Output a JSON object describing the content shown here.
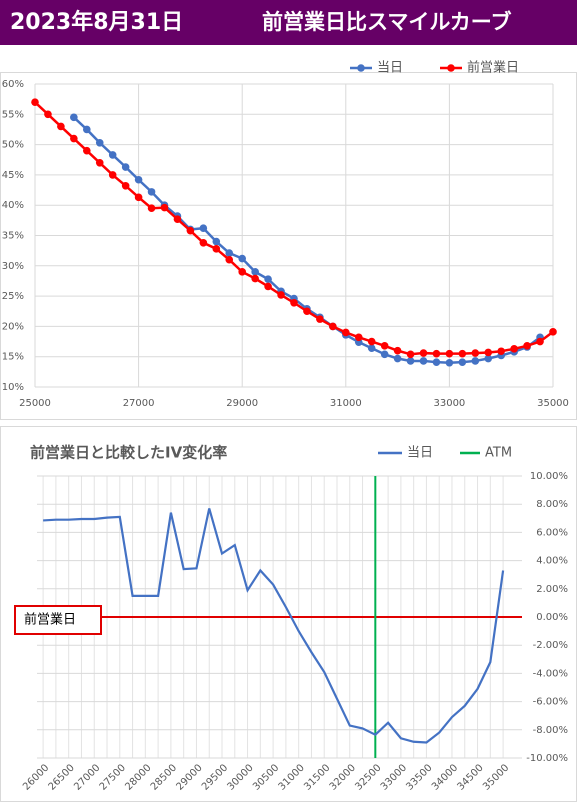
{
  "header": {
    "date": "2023年8月31日",
    "title": "前営業日比スマイルカーブ"
  },
  "chart_data": [
    {
      "type": "line",
      "x": [
        25000,
        25250,
        25500,
        25750,
        26000,
        26250,
        26500,
        26750,
        27000,
        27250,
        27500,
        27750,
        28000,
        28250,
        28500,
        28750,
        29000,
        29250,
        29500,
        29750,
        30000,
        30250,
        30500,
        30750,
        31000,
        31250,
        31500,
        31750,
        32000,
        32250,
        32500,
        32750,
        33000,
        33250,
        33500,
        33750,
        34000,
        34250,
        34500,
        34750,
        35000
      ],
      "xlim": [
        25000,
        35000
      ],
      "xticks": [
        25000,
        27000,
        29000,
        31000,
        33000,
        35000
      ],
      "ylim": [
        10,
        60
      ],
      "yticks": [
        {
          "value": 10,
          "label": "10%"
        },
        {
          "value": 15,
          "label": "15%"
        },
        {
          "value": 20,
          "label": "20%"
        },
        {
          "value": 25,
          "label": "25%"
        },
        {
          "value": 30,
          "label": "30%"
        },
        {
          "value": 35,
          "label": "35%"
        },
        {
          "value": 40,
          "label": "40%"
        },
        {
          "value": 45,
          "label": "45%"
        },
        {
          "value": 50,
          "label": "50%"
        },
        {
          "value": 55,
          "label": "55%"
        },
        {
          "value": 60,
          "label": "60%"
        }
      ],
      "grid": true,
      "legend": "top-right",
      "markers": true,
      "series": [
        {
          "name": "当日",
          "color": "#4472c4",
          "values": [
            null,
            null,
            null,
            54.5,
            52.5,
            50.3,
            48.3,
            46.3,
            44.2,
            42.2,
            40,
            38.2,
            36,
            36.2,
            34,
            32.1,
            31.2,
            29,
            27.8,
            25.8,
            24.6,
            22.9,
            21.5,
            20,
            18.6,
            17.4,
            16.4,
            15.4,
            14.7,
            14.3,
            14.3,
            14.1,
            14,
            14.1,
            14.3,
            14.7,
            15.2,
            15.8,
            16.6,
            18.2,
            null
          ]
        },
        {
          "name": "前営業日",
          "color": "#ff0000",
          "values": [
            57,
            55,
            53,
            51,
            49,
            47,
            45,
            43.2,
            41.3,
            39.5,
            39.6,
            37.7,
            35.8,
            33.8,
            32.8,
            31,
            29,
            27.9,
            26.6,
            25.2,
            23.9,
            22.5,
            21.2,
            20,
            19,
            18.2,
            17.5,
            16.8,
            16,
            15.4,
            15.6,
            15.5,
            15.5,
            15.5,
            15.6,
            15.7,
            15.9,
            16.3,
            16.8,
            17.5,
            19.1
          ]
        }
      ]
    },
    {
      "type": "line",
      "title": "前営業日と比較したIV変化率",
      "x": [
        26000,
        26250,
        26500,
        26750,
        27000,
        27250,
        27500,
        27750,
        28000,
        28250,
        28500,
        28750,
        29000,
        29250,
        29500,
        29750,
        30000,
        30250,
        30500,
        30750,
        31000,
        31250,
        31500,
        31750,
        32000,
        32250,
        32500,
        32750,
        33000,
        33250,
        33500,
        33750,
        34000,
        34250,
        34500,
        34750,
        35000
      ],
      "xlim": [
        25880,
        35370
      ],
      "xticks": [
        26000,
        26500,
        27000,
        27500,
        28000,
        28500,
        29000,
        29500,
        30000,
        30500,
        31000,
        31500,
        32000,
        32500,
        33000,
        33500,
        34000,
        34500,
        35000
      ],
      "ylim": [
        -10,
        10
      ],
      "yticks": [
        {
          "value": 10,
          "label": "10.00%"
        },
        {
          "value": 8,
          "label": "8.00%"
        },
        {
          "value": 6,
          "label": "6.00%"
        },
        {
          "value": 4,
          "label": "4.00%"
        },
        {
          "value": 2,
          "label": "2.00%"
        },
        {
          "value": 0,
          "label": "0.00%"
        },
        {
          "value": -2,
          "label": "-2.00%"
        },
        {
          "value": -4,
          "label": "-4.00%"
        },
        {
          "value": -6,
          "label": "-6.00%"
        },
        {
          "value": -8,
          "label": "-8.00%"
        },
        {
          "value": -10,
          "label": "-10.00%"
        }
      ],
      "grid": true,
      "legend": "top-right",
      "markers": false,
      "series": [
        {
          "name": "当日",
          "color": "#4472c4",
          "values": [
            6.85,
            6.9,
            6.9,
            6.95,
            6.95,
            7.05,
            7.1,
            1.5,
            1.5,
            1.5,
            7.4,
            3.4,
            3.45,
            7.7,
            4.5,
            5.1,
            1.9,
            3.3,
            2.3,
            0.7,
            -1.0,
            -2.5,
            -3.9,
            -5.8,
            -7.7,
            -7.9,
            -8.35,
            -7.5,
            -8.6,
            -8.85,
            -8.9,
            -8.2,
            -7.1,
            -6.3,
            -5.1,
            -3.2,
            3.3
          ]
        }
      ],
      "reference_line": {
        "value": 0,
        "label": "前営業日",
        "color": "#e00000"
      },
      "atm_line": {
        "value": 32500,
        "label": "ATM",
        "color": "#00b050"
      }
    }
  ]
}
